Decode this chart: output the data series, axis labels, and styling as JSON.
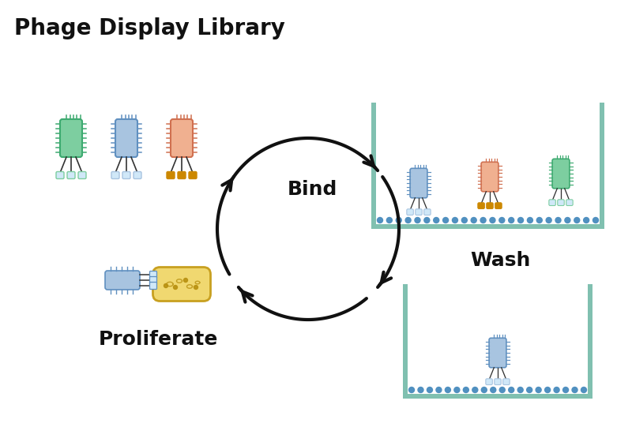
{
  "title": "Phage Display Library",
  "bg_color": "#ffffff",
  "title_fontsize": 20,
  "label_bind": "Bind",
  "label_wash": "Wash",
  "label_proliferate": "Proliferate",
  "green_body": "#7DCEA0",
  "green_border": "#3DAA70",
  "blue_body": "#A8C4E0",
  "blue_border": "#6090C0",
  "orange_body": "#F0B090",
  "orange_border": "#D07050",
  "gold": "#CC8800",
  "tub_wall": "#80C0B0",
  "antigen_dot": "#5090C0",
  "bacteria_body": "#F0D870",
  "bacteria_border": "#C8A020",
  "arrow_color": "#111111",
  "text_color": "#111111"
}
